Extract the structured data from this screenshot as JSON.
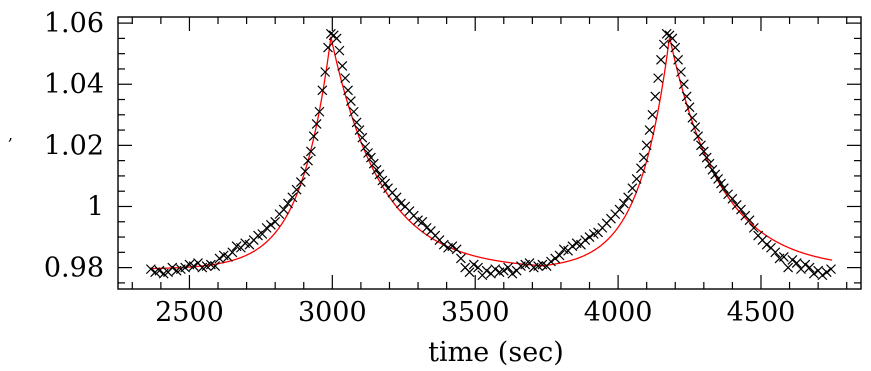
{
  "chart_data": {
    "type": "scatter",
    "xlabel": "time (sec)",
    "ylabel": "",
    "ylabel_fragment": ",",
    "xlim": [
      2250,
      4850
    ],
    "ylim": [
      0.973,
      1.062
    ],
    "x_ticks": [
      2500,
      3000,
      3500,
      4000,
      4500
    ],
    "y_ticks": [
      0.98,
      1.0,
      1.02,
      1.04,
      1.06
    ],
    "x_tick_labels": [
      "2500",
      "3000",
      "3500",
      "4000",
      "4500"
    ],
    "y_tick_labels": [
      "0.98",
      "1",
      "1.02",
      "1.04",
      "1.06"
    ],
    "grid": false,
    "legend": "none",
    "colors": {
      "markers": "#000000",
      "model": "#ff0000",
      "axes": "#000000"
    },
    "series": [
      {
        "kind": "markers",
        "marker": "x",
        "points": [
          [
            2365,
            0.9795
          ],
          [
            2380,
            0.9785
          ],
          [
            2395,
            0.979
          ],
          [
            2410,
            0.978
          ],
          [
            2425,
            0.9785
          ],
          [
            2440,
            0.98
          ],
          [
            2455,
            0.979
          ],
          [
            2470,
            0.9795
          ],
          [
            2485,
            0.98
          ],
          [
            2500,
            0.981
          ],
          [
            2515,
            0.9805
          ],
          [
            2530,
            0.9815
          ],
          [
            2545,
            0.98
          ],
          [
            2560,
            0.9805
          ],
          [
            2575,
            0.981
          ],
          [
            2590,
            0.9805
          ],
          [
            2605,
            0.983
          ],
          [
            2620,
            0.984
          ],
          [
            2635,
            0.9835
          ],
          [
            2650,
            0.985
          ],
          [
            2665,
            0.987
          ],
          [
            2680,
            0.9865
          ],
          [
            2695,
            0.988
          ],
          [
            2710,
            0.9875
          ],
          [
            2725,
            0.989
          ],
          [
            2740,
            0.9905
          ],
          [
            2755,
            0.991
          ],
          [
            2770,
            0.993
          ],
          [
            2785,
            0.994
          ],
          [
            2800,
            0.995
          ],
          [
            2815,
            0.9975
          ],
          [
            2830,
            0.999
          ],
          [
            2845,
            1.001
          ],
          [
            2860,
            1.003
          ],
          [
            2875,
            1.0055
          ],
          [
            2890,
            1.008
          ],
          [
            2905,
            1.0115
          ],
          [
            2915,
            1.015
          ],
          [
            2925,
            1.018
          ],
          [
            2935,
            1.023
          ],
          [
            2945,
            1.027
          ],
          [
            2955,
            1.031
          ],
          [
            2965,
            1.038
          ],
          [
            2975,
            1.044
          ],
          [
            2985,
            1.052
          ],
          [
            2995,
            1.0565
          ],
          [
            3005,
            1.056
          ],
          [
            3015,
            1.055
          ],
          [
            3025,
            1.051
          ],
          [
            3035,
            1.046
          ],
          [
            3045,
            1.042
          ],
          [
            3055,
            1.038
          ],
          [
            3065,
            1.0345
          ],
          [
            3075,
            1.031
          ],
          [
            3085,
            1.0275
          ],
          [
            3095,
            1.025
          ],
          [
            3105,
            1.0225
          ],
          [
            3115,
            1.0195
          ],
          [
            3125,
            1.0175
          ],
          [
            3135,
            1.016
          ],
          [
            3145,
            1.014
          ],
          [
            3155,
            1.012
          ],
          [
            3165,
            1.0105
          ],
          [
            3175,
            1.0085
          ],
          [
            3185,
            1.0075
          ],
          [
            3195,
            1.006
          ],
          [
            3210,
            1.0045
          ],
          [
            3225,
            1.003
          ],
          [
            3240,
            1.001
          ],
          [
            3255,
            1.0
          ],
          [
            3270,
            0.9985
          ],
          [
            3285,
            0.997
          ],
          [
            3300,
            0.9955
          ],
          [
            3315,
            0.995
          ],
          [
            3330,
            0.993
          ],
          [
            3345,
            0.992
          ],
          [
            3360,
            0.9905
          ],
          [
            3375,
            0.989
          ],
          [
            3390,
            0.9875
          ],
          [
            3405,
            0.9865
          ],
          [
            3420,
            0.987
          ],
          [
            3435,
            0.986
          ],
          [
            3450,
            0.983
          ],
          [
            3465,
            0.98
          ],
          [
            3480,
            0.9785
          ],
          [
            3495,
            0.981
          ],
          [
            3510,
            0.98
          ],
          [
            3525,
            0.9775
          ],
          [
            3540,
            0.979
          ],
          [
            3555,
            0.978
          ],
          [
            3570,
            0.9795
          ],
          [
            3585,
            0.9785
          ],
          [
            3600,
            0.979
          ],
          [
            3615,
            0.98
          ],
          [
            3630,
            0.978
          ],
          [
            3645,
            0.979
          ],
          [
            3660,
            0.9805
          ],
          [
            3675,
            0.981
          ],
          [
            3690,
            0.9815
          ],
          [
            3705,
            0.98
          ],
          [
            3720,
            0.9805
          ],
          [
            3735,
            0.981
          ],
          [
            3750,
            0.9805
          ],
          [
            3765,
            0.982
          ],
          [
            3780,
            0.983
          ],
          [
            3795,
            0.984
          ],
          [
            3810,
            0.986
          ],
          [
            3825,
            0.9855
          ],
          [
            3840,
            0.987
          ],
          [
            3855,
            0.988
          ],
          [
            3870,
            0.9875
          ],
          [
            3885,
            0.989
          ],
          [
            3900,
            0.99
          ],
          [
            3915,
            0.991
          ],
          [
            3930,
            0.9915
          ],
          [
            3945,
            0.993
          ],
          [
            3960,
            0.9945
          ],
          [
            3975,
            0.996
          ],
          [
            3990,
            0.9975
          ],
          [
            4005,
            0.999
          ],
          [
            4020,
            1.001
          ],
          [
            4035,
            1.003
          ],
          [
            4050,
            1.006
          ],
          [
            4065,
            1.009
          ],
          [
            4080,
            1.0125
          ],
          [
            4090,
            1.016
          ],
          [
            4100,
            1.02
          ],
          [
            4110,
            1.025
          ],
          [
            4120,
            1.03
          ],
          [
            4130,
            1.036
          ],
          [
            4140,
            1.042
          ],
          [
            4150,
            1.048
          ],
          [
            4160,
            1.053
          ],
          [
            4170,
            1.0565
          ],
          [
            4180,
            1.056
          ],
          [
            4190,
            1.055
          ],
          [
            4200,
            1.052
          ],
          [
            4210,
            1.048
          ],
          [
            4220,
            1.044
          ],
          [
            4230,
            1.04
          ],
          [
            4240,
            1.036
          ],
          [
            4250,
            1.0325
          ],
          [
            4260,
            1.029
          ],
          [
            4270,
            1.026
          ],
          [
            4280,
            1.023
          ],
          [
            4290,
            1.02
          ],
          [
            4300,
            1.018
          ],
          [
            4310,
            1.016
          ],
          [
            4320,
            1.014
          ],
          [
            4330,
            1.012
          ],
          [
            4340,
            1.0105
          ],
          [
            4350,
            1.009
          ],
          [
            4360,
            1.0075
          ],
          [
            4370,
            1.006
          ],
          [
            4385,
            1.004
          ],
          [
            4400,
            1.0025
          ],
          [
            4415,
            1.0005
          ],
          [
            4430,
            0.999
          ],
          [
            4445,
            0.997
          ],
          [
            4460,
            0.9955
          ],
          [
            4475,
            0.993
          ],
          [
            4490,
            0.9905
          ],
          [
            4505,
            0.989
          ],
          [
            4520,
            0.9875
          ],
          [
            4535,
            0.9865
          ],
          [
            4550,
            0.985
          ],
          [
            4565,
            0.983
          ],
          [
            4580,
            0.9835
          ],
          [
            4595,
            0.98
          ],
          [
            4610,
            0.9825
          ],
          [
            4625,
            0.9815
          ],
          [
            4640,
            0.9795
          ],
          [
            4655,
            0.981
          ],
          [
            4670,
            0.98
          ],
          [
            4685,
            0.978
          ],
          [
            4700,
            0.979
          ],
          [
            4715,
            0.9775
          ],
          [
            4730,
            0.9785
          ],
          [
            4745,
            0.9795
          ]
        ]
      },
      {
        "kind": "line",
        "model": "periodic-cusp",
        "baseline": 0.9795,
        "peak": 1.0555,
        "peak_times": [
          2995,
          4180
        ],
        "period": 1185,
        "rise_decay": 105,
        "fall_decay": 175,
        "x_range": [
          2365,
          4750
        ]
      }
    ]
  }
}
